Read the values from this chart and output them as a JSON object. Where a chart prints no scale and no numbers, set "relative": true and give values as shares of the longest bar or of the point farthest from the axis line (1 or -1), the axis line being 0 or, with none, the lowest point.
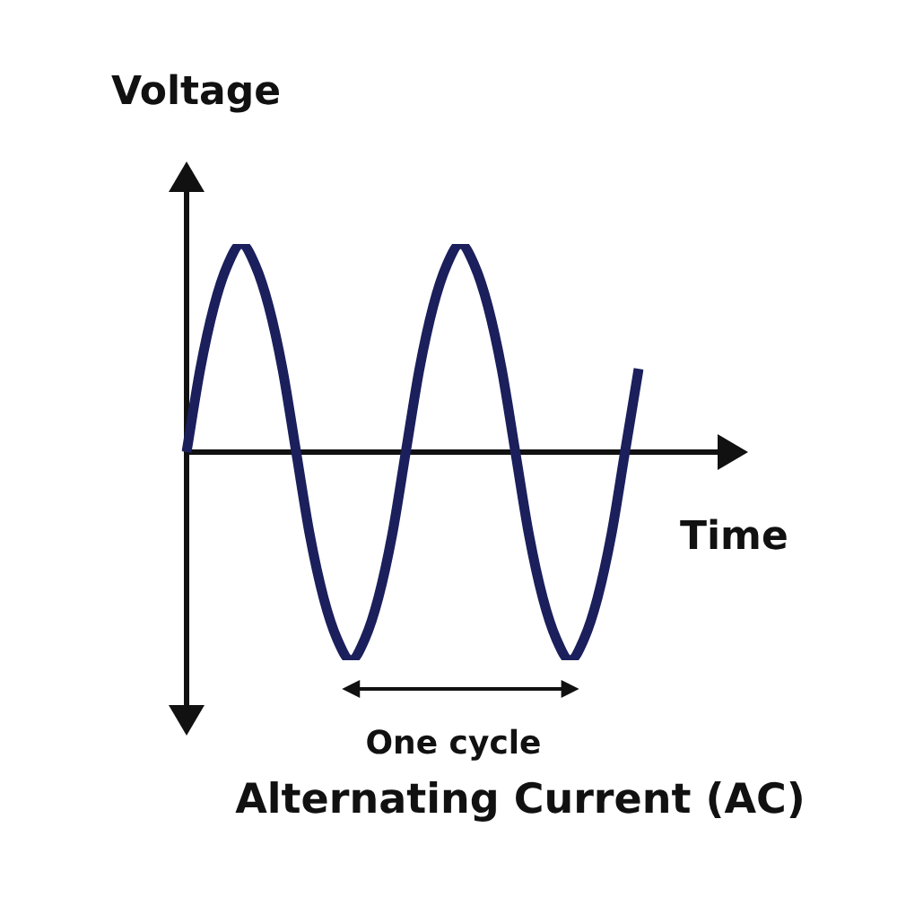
{
  "chart_data": {
    "type": "line",
    "title": "Alternating Current (AC)",
    "xlabel": "Time",
    "ylabel": "Voltage",
    "annotations": [
      "One cycle"
    ],
    "relative": true,
    "categories": [
      null,
      null,
      null,
      null,
      null,
      null,
      null,
      null,
      null,
      null,
      null,
      null,
      null,
      null,
      null,
      null,
      null,
      null,
      null,
      null,
      null,
      null,
      null,
      null,
      null,
      null,
      null,
      null,
      null,
      null,
      null,
      null,
      null,
      null
    ],
    "values": [
      0,
      0.4,
      0.7,
      0.9,
      1,
      0.9,
      0.7,
      0.4,
      0,
      -0.4,
      -0.7,
      -0.9,
      -1,
      -0.9,
      -0.7,
      -0.4,
      0,
      0.4,
      0.7,
      0.9,
      1,
      0.9,
      0.7,
      0.4,
      0,
      -0.4,
      -0.7,
      -0.9,
      -1,
      -0.9,
      -0.7,
      -0.4,
      0,
      0.4
    ],
    "color": "#1b1f5c"
  }
}
